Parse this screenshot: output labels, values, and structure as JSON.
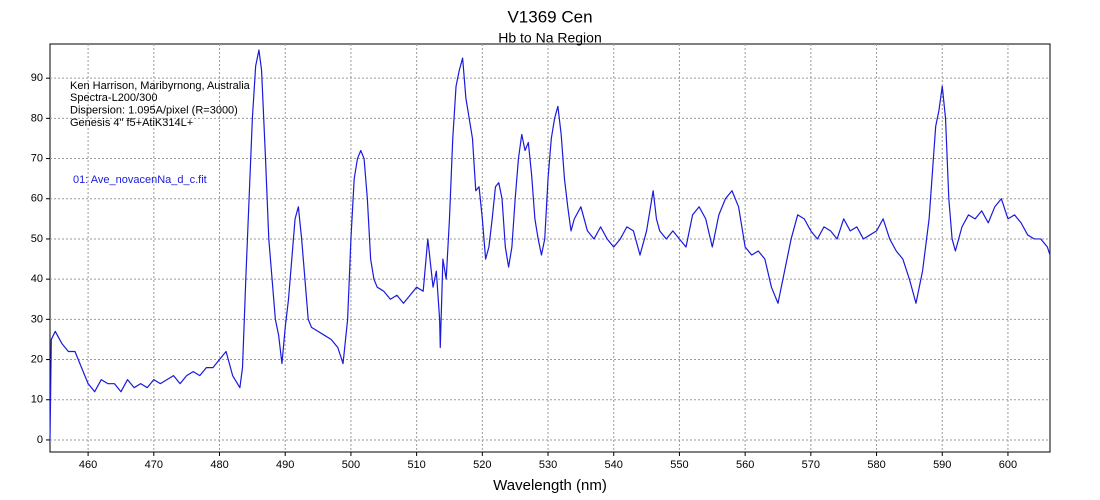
{
  "chart_data": {
    "type": "line",
    "title": "V1369 Cen",
    "subtitle": "Hb to Na Region",
    "x_label": "Wavelength (nm)",
    "annotations": [
      "Ken Harrison, Maribyrnong, Australia",
      "Spectra-L200/300",
      "Dispersion: 1.095A/pixel (R=3000)",
      "Genesis 4\" f5+AtiK314L+"
    ],
    "x": [
      454.2,
      454.4,
      455,
      456,
      457,
      458,
      459,
      460,
      461,
      462,
      463,
      464,
      465,
      466,
      467,
      468,
      469,
      470,
      471,
      472,
      473,
      474,
      475,
      476,
      477,
      478,
      479,
      480,
      481,
      482,
      483.1,
      483.5,
      484,
      484.5,
      485,
      485.5,
      486,
      486.4,
      487,
      487.5,
      488,
      488.5,
      489,
      489.5,
      490,
      490.5,
      491,
      491.5,
      492,
      492.5,
      493,
      493.5,
      494,
      495,
      496,
      497,
      498,
      498.8,
      499.5,
      500,
      500.5,
      501,
      501.5,
      502,
      502.5,
      503,
      503.5,
      504,
      505,
      506,
      507,
      508,
      509,
      510,
      511,
      511.7,
      512.5,
      513,
      513.5,
      513.6,
      514,
      514.5,
      515,
      515.5,
      516,
      516.5,
      517,
      517.5,
      518,
      518.5,
      519,
      519.5,
      520,
      520.5,
      521,
      521.5,
      522,
      522.5,
      523,
      523.5,
      524,
      524.5,
      525,
      525.5,
      526,
      526.5,
      527,
      527.5,
      528,
      528.5,
      529,
      529.5,
      530,
      530.5,
      531,
      531.5,
      532,
      532.5,
      533,
      533.5,
      534,
      535,
      536,
      537,
      538,
      539,
      540,
      541,
      542,
      543,
      544,
      545,
      546,
      546.5,
      547,
      548,
      549,
      550,
      551,
      552,
      553,
      554,
      555,
      556,
      557,
      558,
      559,
      560,
      561,
      562,
      563,
      564,
      565,
      566,
      567,
      568,
      569,
      570,
      571,
      572,
      573,
      574,
      575,
      576,
      577,
      578,
      579,
      580,
      581,
      582,
      583,
      584,
      585,
      586,
      587,
      588,
      589,
      589.5,
      590,
      590.5,
      591,
      591.5,
      592,
      593,
      594,
      595,
      596,
      597,
      598,
      599,
      600,
      601,
      602,
      603,
      604,
      605,
      606,
      606.4
    ],
    "series": [
      {
        "name": "01: Ave_novacenNa_d_c.fit",
        "color": "#1a1adc",
        "values": [
          0,
          25,
          27,
          24,
          22,
          22,
          18,
          14,
          12,
          15,
          14,
          14,
          12,
          15,
          13,
          14,
          13,
          15,
          14,
          15,
          16,
          14,
          16,
          17,
          16,
          18,
          18,
          20,
          22,
          16,
          13,
          18,
          40,
          60,
          80,
          93,
          97,
          92,
          70,
          50,
          40,
          30,
          26,
          19,
          28,
          35,
          45,
          55,
          58,
          50,
          40,
          30,
          28,
          27,
          26,
          25,
          23,
          19,
          30,
          50,
          65,
          70,
          72,
          70,
          60,
          45,
          40,
          38,
          37,
          35,
          36,
          34,
          36,
          38,
          37,
          50,
          38,
          42,
          30,
          23,
          45,
          40,
          55,
          75,
          88,
          92,
          95,
          85,
          80,
          75,
          62,
          63,
          55,
          45,
          48,
          55,
          63,
          64,
          60,
          48,
          43,
          48,
          60,
          70,
          76,
          72,
          74,
          66,
          55,
          50,
          46,
          50,
          65,
          75,
          80,
          83,
          76,
          65,
          58,
          52,
          55,
          58,
          52,
          50,
          53,
          50,
          48,
          50,
          53,
          52,
          46,
          52,
          62,
          55,
          52,
          50,
          52,
          50,
          48,
          56,
          58,
          55,
          48,
          56,
          60,
          62,
          58,
          48,
          46,
          47,
          45,
          38,
          34,
          42,
          50,
          56,
          55,
          52,
          50,
          53,
          52,
          50,
          55,
          52,
          53,
          50,
          51,
          52,
          55,
          50,
          47,
          45,
          40,
          34,
          42,
          55,
          78,
          82,
          88,
          80,
          60,
          50,
          47,
          53,
          56,
          55,
          57,
          54,
          58,
          60,
          55,
          56,
          54,
          51,
          50,
          50,
          48,
          46
        ]
      }
    ],
    "xlim": [
      454.2,
      606.4
    ],
    "ylim": [
      -3,
      98.5
    ],
    "xticks": [
      460,
      470,
      480,
      490,
      500,
      510,
      520,
      530,
      540,
      550,
      560,
      570,
      580,
      590,
      600
    ],
    "yticks": [
      0,
      10,
      20,
      30,
      40,
      50,
      60,
      70,
      80,
      90
    ],
    "grid": true
  }
}
